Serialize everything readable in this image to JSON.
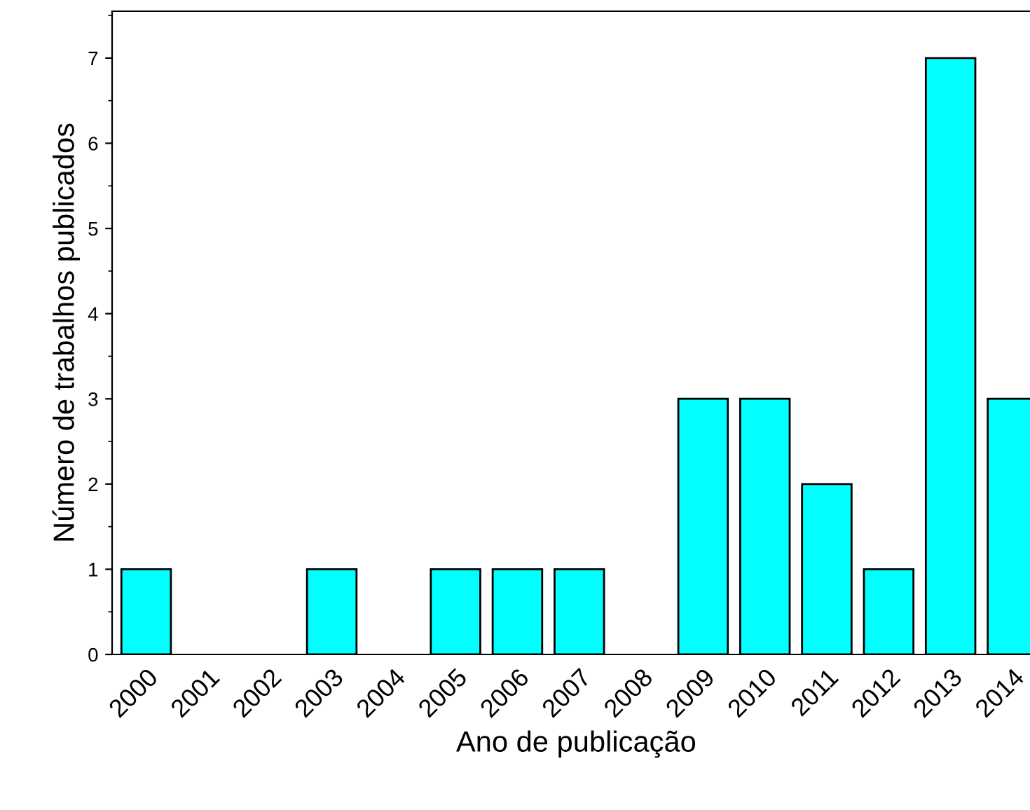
{
  "chart_data": {
    "type": "bar",
    "xlabel": "Ano de publicação",
    "ylabel": "Número de trabalhos publicados",
    "categories": [
      "2000",
      "2001",
      "2002",
      "2003",
      "2004",
      "2005",
      "2006",
      "2007",
      "2008",
      "2009",
      "2010",
      "2011",
      "2012",
      "2013",
      "2014"
    ],
    "values": [
      1,
      0,
      0,
      1,
      0,
      1,
      1,
      1,
      0,
      3,
      3,
      2,
      1,
      7,
      3
    ],
    "color": "#00ffff",
    "ylim": [
      0,
      7.55
    ],
    "yticks": [
      0,
      1,
      2,
      3,
      4,
      5,
      6,
      7
    ],
    "grid": false,
    "legend": false
  }
}
